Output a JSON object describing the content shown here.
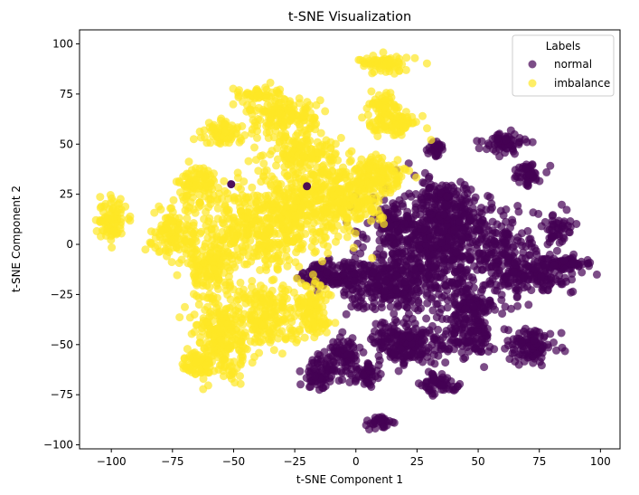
{
  "chart_data": {
    "type": "scatter",
    "title": "t-SNE Visualization",
    "xlabel": "t-SNE Component 1",
    "ylabel": "t-SNE Component 2",
    "xlim": [
      -113,
      108
    ],
    "ylim": [
      -102,
      107
    ],
    "xticks": [
      -100,
      -75,
      -50,
      -25,
      0,
      25,
      50,
      75,
      100
    ],
    "yticks": [
      -100,
      -75,
      -50,
      -25,
      0,
      25,
      50,
      75,
      100
    ],
    "xtick_labels": [
      "−100",
      "−75",
      "−50",
      "−25",
      "0",
      "25",
      "50",
      "75",
      "100"
    ],
    "ytick_labels": [
      "−100",
      "−75",
      "−50",
      "−25",
      "0",
      "25",
      "50",
      "75",
      "100"
    ],
    "grid": false,
    "legend": {
      "title": "Labels",
      "placement": "upper right",
      "entries": [
        "normal",
        "imbalance"
      ]
    },
    "series": [
      {
        "name": "normal",
        "color": "#440154",
        "alpha": 0.7,
        "clusters": [
          {
            "cx": 30,
            "cy": -5,
            "rx": 25,
            "ry": 30,
            "n": 520
          },
          {
            "cx": 10,
            "cy": -20,
            "rx": 18,
            "ry": 12,
            "n": 200
          },
          {
            "cx": -10,
            "cy": -15,
            "rx": 12,
            "ry": 6,
            "n": 120
          },
          {
            "cx": 40,
            "cy": 10,
            "rx": 15,
            "ry": 15,
            "n": 200
          },
          {
            "cx": 60,
            "cy": -5,
            "rx": 12,
            "ry": 20,
            "n": 160
          },
          {
            "cx": 75,
            "cy": -15,
            "rx": 18,
            "ry": 10,
            "n": 140
          },
          {
            "cx": 85,
            "cy": -10,
            "rx": 12,
            "ry": 3,
            "n": 60
          },
          {
            "cx": 72,
            "cy": -50,
            "rx": 10,
            "ry": 8,
            "n": 110
          },
          {
            "cx": 60,
            "cy": 50,
            "rx": 8,
            "ry": 5,
            "n": 70
          },
          {
            "cx": 33,
            "cy": 48,
            "rx": 3,
            "ry": 4,
            "n": 30
          },
          {
            "cx": 70,
            "cy": 35,
            "rx": 6,
            "ry": 6,
            "n": 50
          },
          {
            "cx": 82,
            "cy": 8,
            "rx": 7,
            "ry": 10,
            "n": 50
          },
          {
            "cx": 20,
            "cy": -50,
            "rx": 15,
            "ry": 12,
            "n": 200
          },
          {
            "cx": 45,
            "cy": -45,
            "rx": 12,
            "ry": 12,
            "n": 140
          },
          {
            "cx": -5,
            "cy": -55,
            "rx": 8,
            "ry": 8,
            "n": 80
          },
          {
            "cx": -15,
            "cy": -65,
            "rx": 8,
            "ry": 8,
            "n": 70
          },
          {
            "cx": 5,
            "cy": -65,
            "rx": 6,
            "ry": 6,
            "n": 50
          },
          {
            "cx": 35,
            "cy": -70,
            "rx": 8,
            "ry": 5,
            "n": 60
          },
          {
            "cx": 10,
            "cy": -88,
            "rx": 5,
            "ry": 4,
            "n": 30
          },
          {
            "cx": 15,
            "cy": 10,
            "rx": 8,
            "ry": 10,
            "n": 90
          },
          {
            "cx": 48,
            "cy": -30,
            "rx": 10,
            "ry": 6,
            "n": 70
          },
          {
            "cx": 35,
            "cy": 25,
            "rx": 8,
            "ry": 6,
            "n": 70
          }
        ],
        "extra_points": [
          [
            -51,
            30
          ],
          [
            -20,
            29
          ]
        ]
      },
      {
        "name": "imbalance",
        "color": "#fde725",
        "alpha": 0.7,
        "clusters": [
          {
            "cx": -40,
            "cy": 10,
            "rx": 25,
            "ry": 25,
            "n": 420
          },
          {
            "cx": -20,
            "cy": 20,
            "rx": 18,
            "ry": 20,
            "n": 260
          },
          {
            "cx": 0,
            "cy": 25,
            "rx": 15,
            "ry": 15,
            "n": 200
          },
          {
            "cx": -55,
            "cy": -45,
            "rx": 12,
            "ry": 20,
            "n": 260
          },
          {
            "cx": -35,
            "cy": -35,
            "rx": 15,
            "ry": 15,
            "n": 200
          },
          {
            "cx": -60,
            "cy": -10,
            "rx": 10,
            "ry": 15,
            "n": 140
          },
          {
            "cx": -100,
            "cy": 12,
            "rx": 6,
            "ry": 10,
            "n": 90
          },
          {
            "cx": -75,
            "cy": 5,
            "rx": 10,
            "ry": 12,
            "n": 110
          },
          {
            "cx": -55,
            "cy": 55,
            "rx": 8,
            "ry": 6,
            "n": 70
          },
          {
            "cx": -30,
            "cy": 65,
            "rx": 15,
            "ry": 10,
            "n": 160
          },
          {
            "cx": -20,
            "cy": 45,
            "rx": 15,
            "ry": 10,
            "n": 140
          },
          {
            "cx": 15,
            "cy": 60,
            "rx": 10,
            "ry": 6,
            "n": 90
          },
          {
            "cx": 12,
            "cy": 90,
            "rx": 12,
            "ry": 4,
            "n": 70
          },
          {
            "cx": 12,
            "cy": 70,
            "rx": 6,
            "ry": 5,
            "n": 50
          },
          {
            "cx": -65,
            "cy": 30,
            "rx": 8,
            "ry": 10,
            "n": 100
          },
          {
            "cx": -18,
            "cy": -30,
            "rx": 6,
            "ry": 10,
            "n": 70
          },
          {
            "cx": -15,
            "cy": -40,
            "rx": 6,
            "ry": 4,
            "n": 30
          },
          {
            "cx": -40,
            "cy": 75,
            "rx": 10,
            "ry": 3,
            "n": 40
          },
          {
            "cx": -65,
            "cy": -60,
            "rx": 6,
            "ry": 6,
            "n": 60
          },
          {
            "cx": 10,
            "cy": 35,
            "rx": 10,
            "ry": 8,
            "n": 90
          }
        ]
      }
    ]
  }
}
